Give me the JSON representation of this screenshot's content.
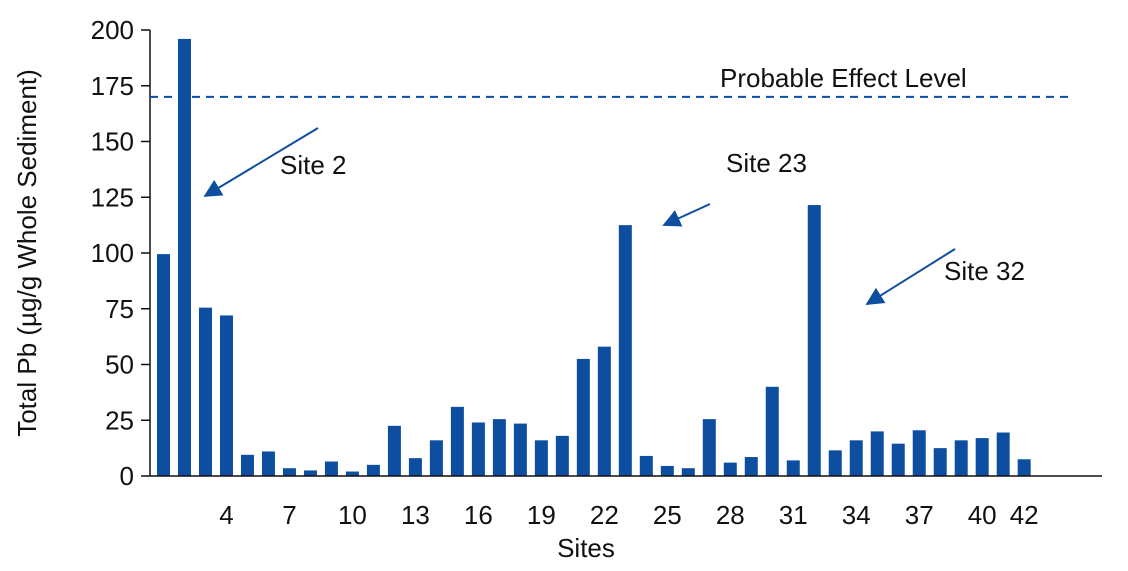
{
  "chart_data": {
    "type": "bar",
    "xlabel": "Sites",
    "ylabel": "Total Pb (µg/g Whole Sediment)",
    "ylim": [
      0,
      200
    ],
    "yticks": [
      0,
      25,
      50,
      75,
      100,
      125,
      150,
      175,
      200
    ],
    "xtick_labels": [
      "4",
      "7",
      "10",
      "13",
      "16",
      "19",
      "22",
      "25",
      "28",
      "31",
      "34",
      "37",
      "40",
      "42"
    ],
    "xtick_sites": [
      4,
      7,
      10,
      13,
      16,
      19,
      22,
      25,
      28,
      31,
      34,
      37,
      40,
      42
    ],
    "sites": [
      1,
      2,
      3,
      4,
      5,
      6,
      7,
      8,
      9,
      10,
      11,
      12,
      13,
      14,
      15,
      16,
      17,
      18,
      19,
      20,
      21,
      22,
      23,
      24,
      25,
      26,
      27,
      28,
      29,
      30,
      31,
      32,
      33,
      34,
      35,
      36,
      37,
      38,
      39,
      40,
      41,
      42
    ],
    "values": [
      99.5,
      196,
      75.5,
      72,
      9.5,
      11,
      3.5,
      2.5,
      6.5,
      2,
      5,
      22.5,
      8,
      16,
      31,
      24,
      25.5,
      23.5,
      16,
      18,
      52.5,
      58,
      112.5,
      9,
      4.5,
      3.5,
      25.5,
      6,
      8.5,
      40,
      7,
      121.5,
      11.5,
      16,
      20,
      14.5,
      20.5,
      12.5,
      16,
      17,
      19.5,
      7.5
    ],
    "bar_color": "#0d4ea1",
    "reference_line": {
      "label": "Probable Effect Level",
      "value": 170,
      "style": "dashed",
      "color": "#0d4ea1"
    },
    "annotations": [
      {
        "label": "Site 2",
        "site": 2
      },
      {
        "label": "Site 23",
        "site": 23
      },
      {
        "label": "Site 32",
        "site": 32
      }
    ],
    "grid": false,
    "legend": "none"
  }
}
